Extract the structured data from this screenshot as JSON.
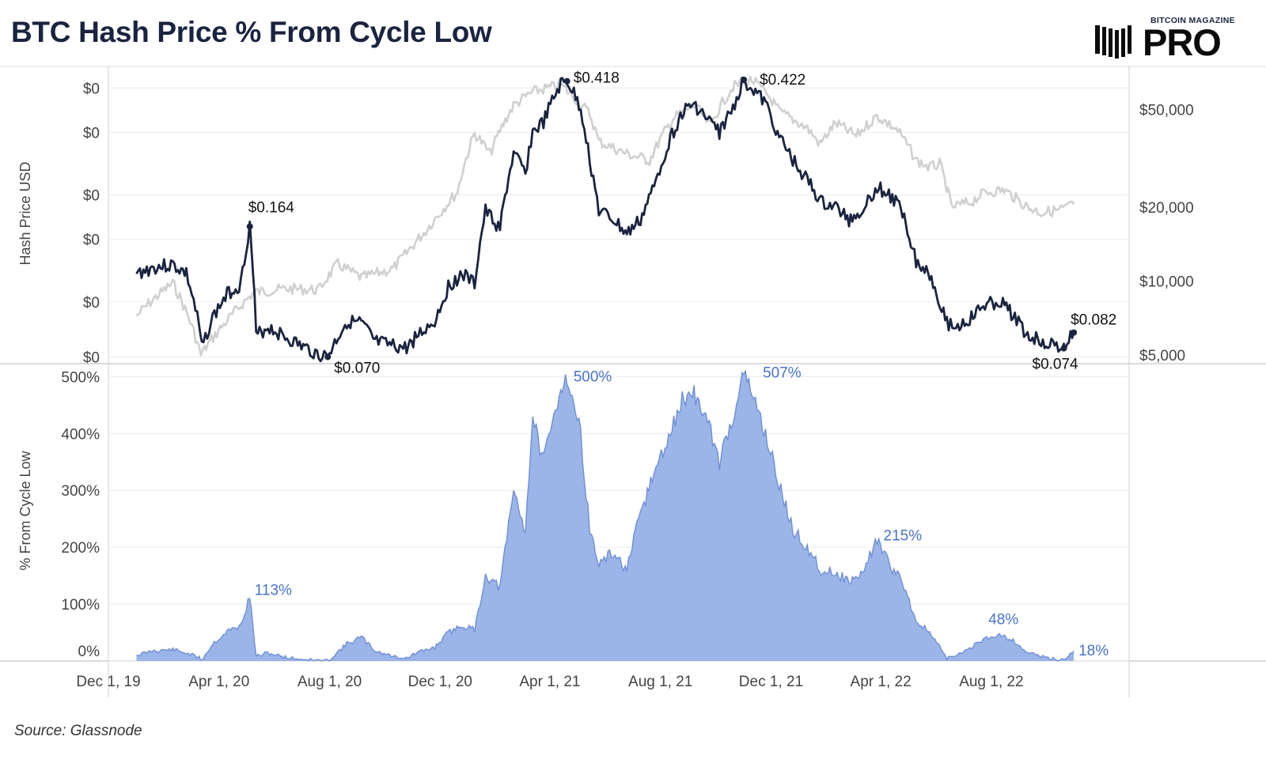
{
  "header": {
    "title": "BTC Hash Price % From Cycle Low"
  },
  "brand": {
    "small_text": "BITCOIN MAGAZINE",
    "big_text": "PRO",
    "icon": "bitcoin-magazine-stripes-icon"
  },
  "footer": {
    "source": "Source: Glassnode"
  },
  "colors": {
    "hash_price": "#1a2440",
    "btc_price": "#d0d0d0",
    "percent_area": "#8aa8e4",
    "percent_line": "#6f8fd6",
    "percent_label": "#4a72d0"
  },
  "chart_data": [
    {
      "type": "line",
      "ylabel": "Hash Price USD",
      "y_tick_labels_left": [
        "$0",
        "$0",
        "$0",
        "$0",
        "$0",
        "$0"
      ],
      "y_ticks_left": [
        0.07,
        0.1,
        0.15,
        0.2,
        0.3,
        0.4
      ],
      "y_scale_left": "log",
      "ylim_left": [
        0.067,
        0.46
      ],
      "y_tick_labels_right": [
        "$50,000",
        "$20,000",
        "$10,000",
        "$5,000"
      ],
      "y_ticks_right": [
        50000,
        20000,
        10000,
        5000
      ],
      "y_scale_right": "log",
      "ylim_right": [
        4600,
        75000
      ],
      "x_ticks": [
        "Dec 1, 19",
        "Apr 1, 20",
        "Aug 1, 20",
        "Dec 1, 20",
        "Apr 1, 21",
        "Aug 1, 21",
        "Dec 1, 21",
        "Apr 1, 22",
        "Aug 1, 22"
      ],
      "grid": true,
      "series": [
        {
          "name": "",
          "axis": "left",
          "x": [
            "2020-01-01",
            "2020-01-20",
            "2020-02-10",
            "2020-02-25",
            "2020-03-10",
            "2020-03-13",
            "2020-03-25",
            "2020-04-10",
            "2020-04-25",
            "2020-05-05",
            "2020-05-12",
            "2020-05-25",
            "2020-06-15",
            "2020-07-01",
            "2020-07-20",
            "2020-07-30",
            "2020-08-20",
            "2020-09-05",
            "2020-09-20",
            "2020-10-10",
            "2020-10-25",
            "2020-11-05",
            "2020-11-25",
            "2020-12-10",
            "2020-12-25",
            "2021-01-08",
            "2021-01-20",
            "2021-02-05",
            "2021-02-20",
            "2021-03-05",
            "2021-03-13",
            "2021-03-25",
            "2021-04-13",
            "2021-04-20",
            "2021-05-05",
            "2021-05-15",
            "2021-05-25",
            "2021-06-10",
            "2021-06-25",
            "2021-07-10",
            "2021-07-25",
            "2021-08-10",
            "2021-08-25",
            "2021-09-07",
            "2021-09-20",
            "2021-10-05",
            "2021-10-20",
            "2021-11-01",
            "2021-11-10",
            "2021-11-25",
            "2021-12-10",
            "2021-12-25",
            "2022-01-10",
            "2022-01-25",
            "2022-02-10",
            "2022-02-25",
            "2022-03-10",
            "2022-03-28",
            "2022-04-10",
            "2022-04-25",
            "2022-05-10",
            "2022-05-25",
            "2022-06-13",
            "2022-06-25",
            "2022-07-10",
            "2022-07-25",
            "2022-08-10",
            "2022-08-25",
            "2022-09-10",
            "2022-09-25",
            "2022-10-10",
            "2022-10-20",
            "2022-10-31"
          ],
          "values": [
            0.12,
            0.125,
            0.127,
            0.12,
            0.085,
            0.074,
            0.09,
            0.105,
            0.112,
            0.163,
            0.08,
            0.085,
            0.079,
            0.075,
            0.071,
            0.07,
            0.088,
            0.087,
            0.077,
            0.075,
            0.074,
            0.08,
            0.088,
            0.11,
            0.12,
            0.112,
            0.18,
            0.16,
            0.26,
            0.23,
            0.3,
            0.32,
            0.41,
            0.418,
            0.35,
            0.25,
            0.18,
            0.17,
            0.155,
            0.17,
            0.21,
            0.28,
            0.34,
            0.36,
            0.33,
            0.3,
            0.35,
            0.422,
            0.4,
            0.36,
            0.29,
            0.25,
            0.22,
            0.19,
            0.185,
            0.17,
            0.18,
            0.21,
            0.2,
            0.18,
            0.13,
            0.12,
            0.087,
            0.085,
            0.09,
            0.098,
            0.1,
            0.092,
            0.08,
            0.078,
            0.075,
            0.074,
            0.082
          ]
        },
        {
          "name": "",
          "axis": "right",
          "x": [
            "2020-01-01",
            "2020-02-10",
            "2020-03-12",
            "2020-04-10",
            "2020-05-10",
            "2020-06-15",
            "2020-07-20",
            "2020-08-10",
            "2020-09-05",
            "2020-10-10",
            "2020-10-25",
            "2020-11-15",
            "2020-12-01",
            "2020-12-20",
            "2021-01-08",
            "2021-01-25",
            "2021-02-20",
            "2021-03-13",
            "2021-04-13",
            "2021-05-15",
            "2021-05-25",
            "2021-06-25",
            "2021-07-20",
            "2021-08-15",
            "2021-09-07",
            "2021-09-25",
            "2021-10-20",
            "2021-11-10",
            "2021-11-28",
            "2021-12-10",
            "2022-01-10",
            "2022-01-24",
            "2022-02-10",
            "2022-03-05",
            "2022-03-28",
            "2022-04-20",
            "2022-05-10",
            "2022-05-25",
            "2022-06-05",
            "2022-06-18",
            "2022-07-10",
            "2022-07-25",
            "2022-08-15",
            "2022-09-10",
            "2022-09-25",
            "2022-10-15",
            "2022-10-31"
          ],
          "values": [
            7200,
            9800,
            5000,
            6900,
            9000,
            9300,
            9200,
            11700,
            10300,
            11200,
            13000,
            16000,
            19000,
            23000,
            40000,
            33000,
            52000,
            59000,
            63000,
            48000,
            37000,
            33000,
            31000,
            46000,
            52000,
            43000,
            62000,
            66000,
            57000,
            49000,
            42000,
            36000,
            44000,
            39000,
            47000,
            41000,
            31000,
            29000,
            30000,
            20000,
            21000,
            23000,
            23500,
            20000,
            19000,
            19500,
            20500
          ]
        }
      ],
      "annotations": [
        "$0.164",
        "$0.070",
        "$0.418",
        "$0.422",
        "$0.082",
        "$0.074"
      ]
    },
    {
      "type": "area",
      "ylabel": "% From Cycle Low",
      "y_tick_labels": [
        "500%",
        "400%",
        "300%",
        "200%",
        "100%",
        "0%"
      ],
      "y_ticks": [
        500,
        400,
        300,
        200,
        100,
        0
      ],
      "ylim": [
        0,
        520
      ],
      "grid": true,
      "series": [
        {
          "name": "",
          "x": [
            "2020-01-01",
            "2020-01-20",
            "2020-02-10",
            "2020-02-25",
            "2020-03-10",
            "2020-03-13",
            "2020-03-25",
            "2020-04-10",
            "2020-04-25",
            "2020-05-05",
            "2020-05-12",
            "2020-05-25",
            "2020-06-15",
            "2020-07-01",
            "2020-07-20",
            "2020-07-30",
            "2020-08-20",
            "2020-09-05",
            "2020-09-20",
            "2020-10-10",
            "2020-10-25",
            "2020-11-05",
            "2020-11-25",
            "2020-12-10",
            "2020-12-25",
            "2021-01-08",
            "2021-01-20",
            "2021-02-05",
            "2021-02-20",
            "2021-03-05",
            "2021-03-13",
            "2021-03-25",
            "2021-04-13",
            "2021-04-20",
            "2021-05-05",
            "2021-05-15",
            "2021-05-25",
            "2021-06-10",
            "2021-06-25",
            "2021-07-10",
            "2021-07-25",
            "2021-08-10",
            "2021-08-25",
            "2021-09-07",
            "2021-09-20",
            "2021-10-05",
            "2021-10-20",
            "2021-11-01",
            "2021-11-10",
            "2021-11-25",
            "2021-12-10",
            "2021-12-25",
            "2022-01-10",
            "2022-01-25",
            "2022-02-10",
            "2022-02-25",
            "2022-03-10",
            "2022-03-28",
            "2022-04-10",
            "2022-04-25",
            "2022-05-10",
            "2022-05-25",
            "2022-06-13",
            "2022-06-25",
            "2022-07-10",
            "2022-07-25",
            "2022-08-10",
            "2022-08-25",
            "2022-09-10",
            "2022-09-25",
            "2022-10-10",
            "2022-10-20",
            "2022-10-31"
          ],
          "values": [
            10,
            18,
            20,
            14,
            6,
            2,
            30,
            52,
            62,
            113,
            8,
            14,
            6,
            3,
            1,
            0,
            30,
            42,
            18,
            8,
            5,
            14,
            24,
            50,
            62,
            55,
            150,
            130,
            300,
            230,
            430,
            350,
            480,
            500,
            400,
            230,
            170,
            190,
            160,
            260,
            330,
            390,
            460,
            470,
            430,
            350,
            430,
            507,
            470,
            400,
            310,
            230,
            200,
            160,
            155,
            140,
            150,
            215,
            170,
            140,
            70,
            50,
            5,
            10,
            25,
            38,
            48,
            36,
            15,
            8,
            3,
            2,
            18
          ]
        }
      ],
      "annotations": [
        "113%",
        "500%",
        "507%",
        "215%",
        "48%",
        "18%"
      ]
    }
  ]
}
